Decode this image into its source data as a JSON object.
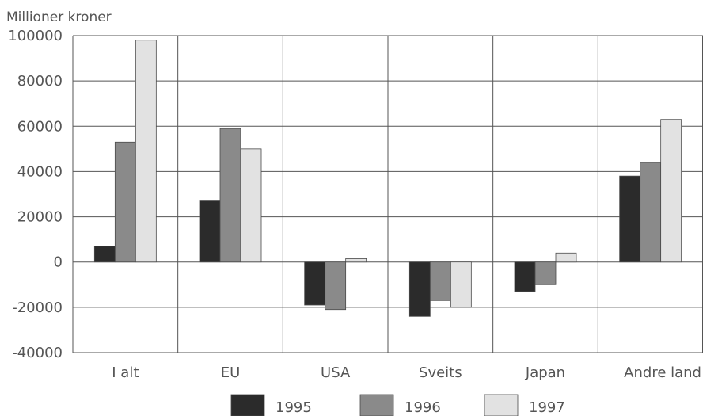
{
  "chart_data": {
    "type": "bar",
    "title": "",
    "ylabel": "Millioner kroner",
    "xlabel": "",
    "categories": [
      "I alt",
      "EU",
      "USA",
      "Sveits",
      "Japan",
      "Andre land"
    ],
    "series": [
      {
        "name": "1995",
        "color": "#2b2b2b",
        "values": [
          7000,
          27000,
          -19000,
          -24000,
          -13000,
          38000
        ]
      },
      {
        "name": "1996",
        "color": "#8a8a8a",
        "values": [
          53000,
          59000,
          -21000,
          -17000,
          -10000,
          44000
        ]
      },
      {
        "name": "1997",
        "color": "#e2e2e2",
        "values": [
          98000,
          50000,
          1500,
          -20000,
          4000,
          63000
        ]
      }
    ],
    "ylim": [
      -40000,
      100000
    ],
    "yticks": [
      100000,
      80000,
      60000,
      40000,
      20000,
      0,
      -20000,
      -40000
    ],
    "ytick_labels": [
      "100000",
      "80000",
      "60000",
      "40000",
      "20000",
      "0",
      "-20000",
      "-40000"
    ],
    "grid": true,
    "legend_position": "bottom"
  }
}
